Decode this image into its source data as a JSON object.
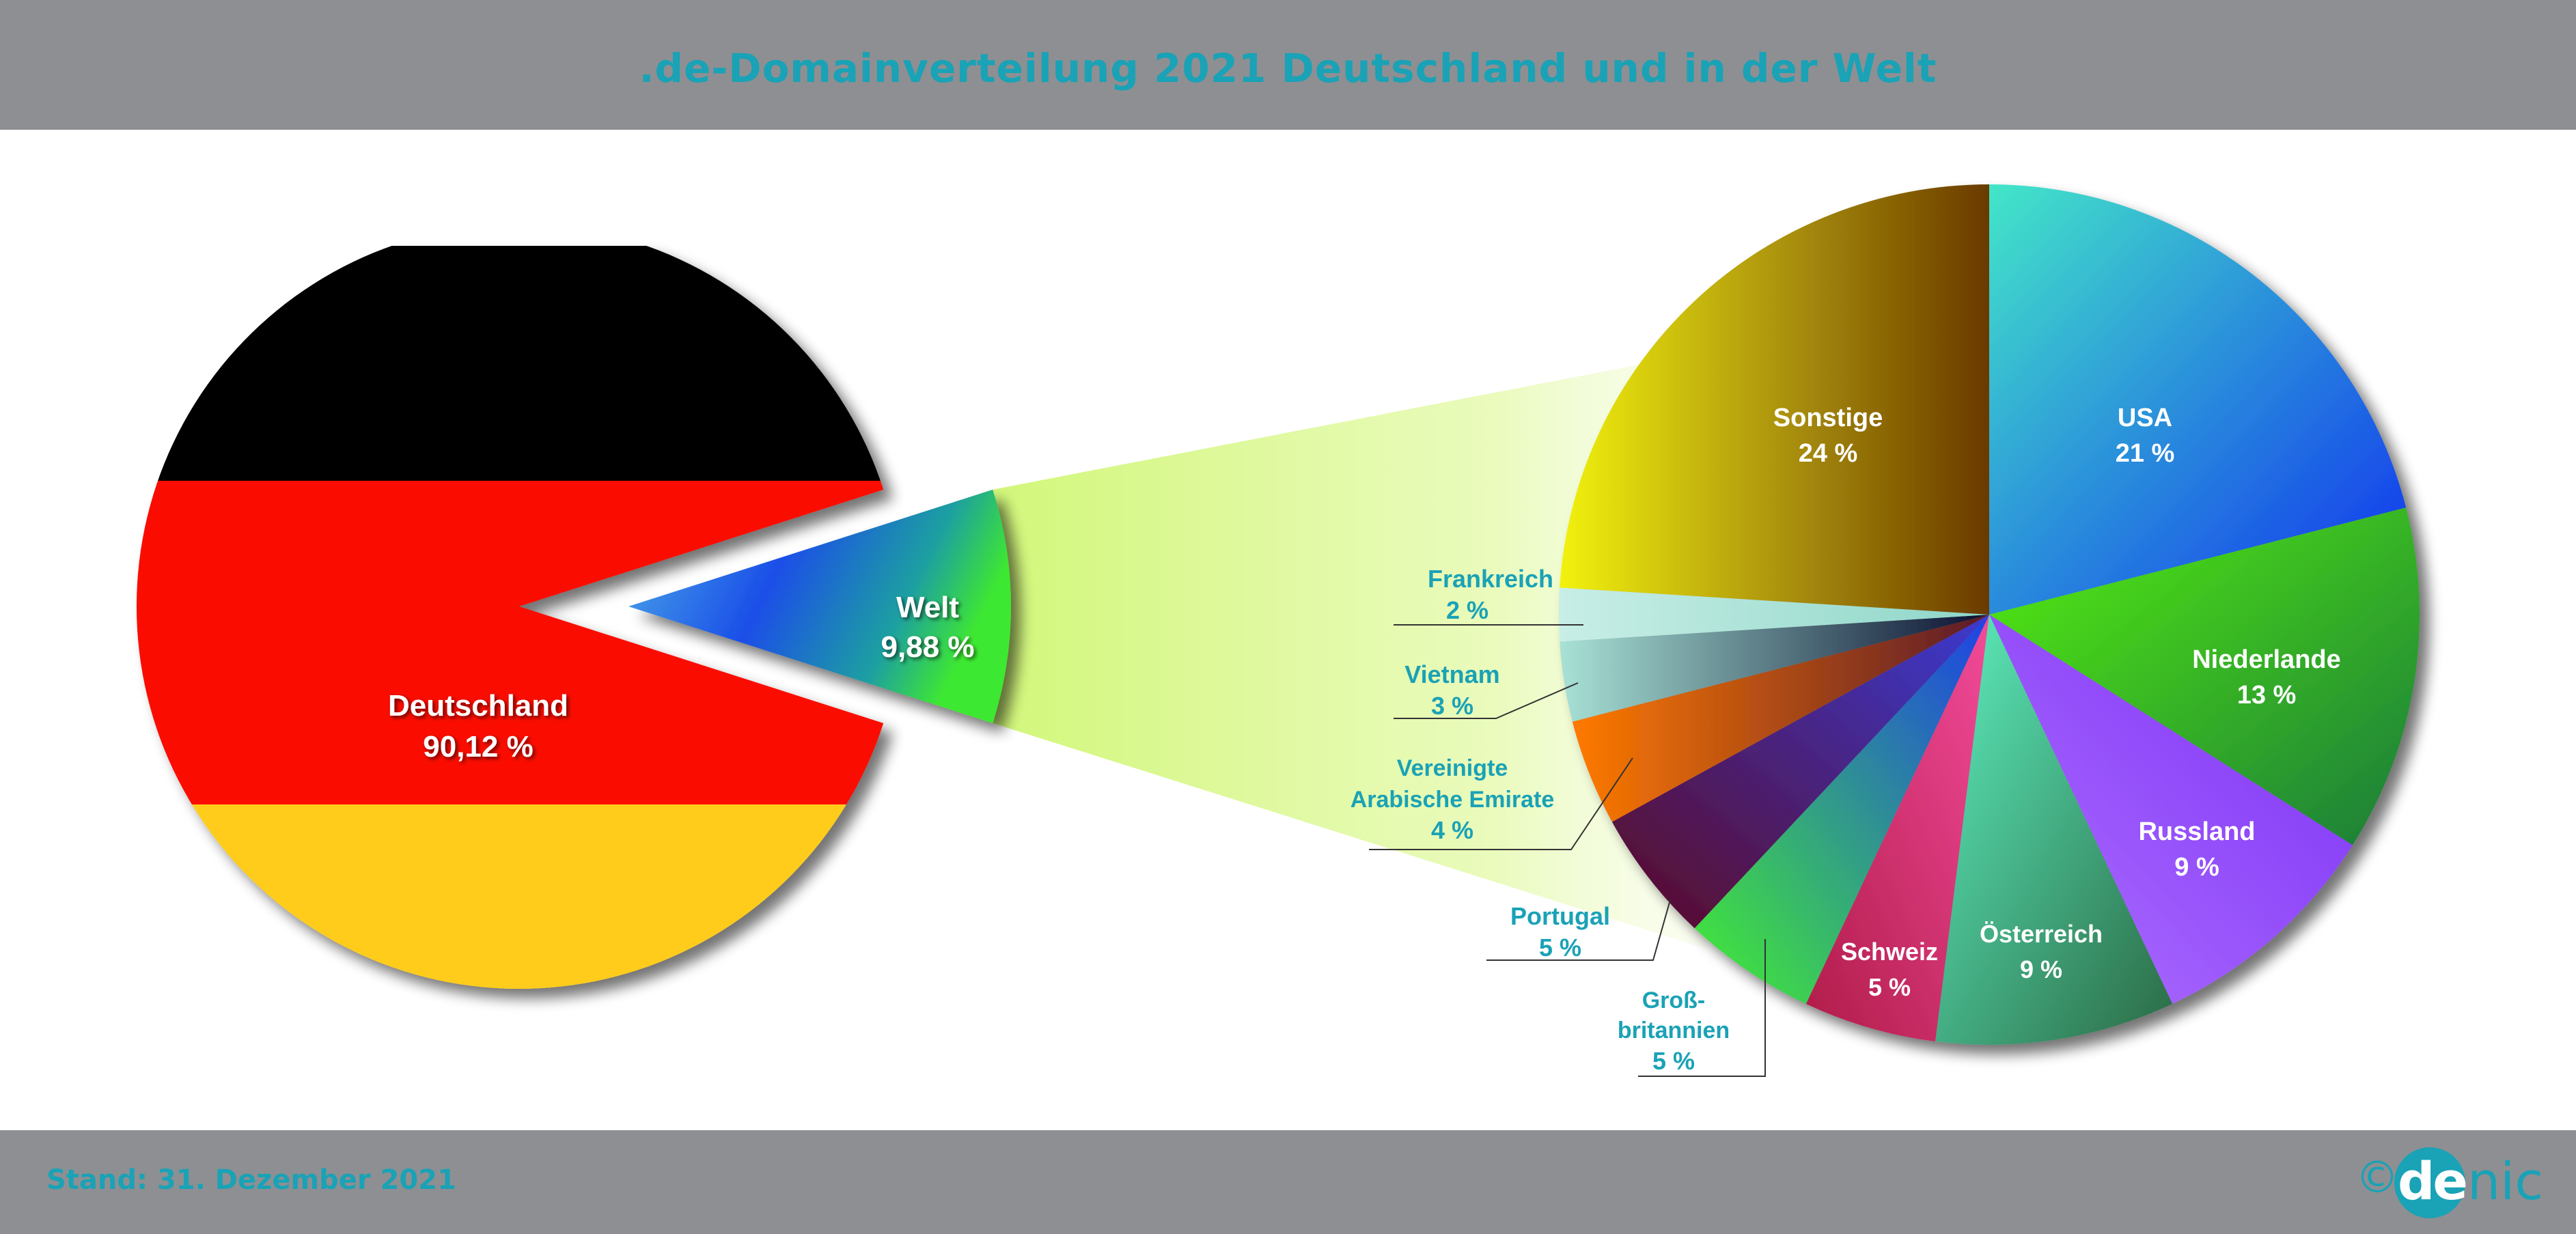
{
  "title": ".de-Domainverteilung 2021 Deutschland und in der Welt",
  "footer": {
    "stand": "Stand: 31. Dezember 2021",
    "copyright": "©",
    "logo_de": "de",
    "logo_nic": "nic"
  },
  "chart_data": [
    {
      "type": "pie",
      "series": [
        {
          "label": "Deutschland",
          "value": 90.12,
          "value_label": "90,12 %"
        },
        {
          "label": "Welt",
          "value": 9.88,
          "value_label": "9,88 %"
        }
      ]
    },
    {
      "type": "pie",
      "series": [
        {
          "label": "USA",
          "value": 21,
          "value_label": "21 %",
          "color": "#2f6fe0"
        },
        {
          "label": "Niederlande",
          "value": 13,
          "value_label": "13 %",
          "color": "#2e9a2e"
        },
        {
          "label": "Russland",
          "value": 9,
          "value_label": "9 %",
          "color": "#9a4cf5"
        },
        {
          "label": "Österreich",
          "value": 9,
          "value_label": "9 %",
          "color": "#4fb59a"
        },
        {
          "label": "Schweiz",
          "value": 5,
          "value_label": "5 %",
          "color": "#d62a6e"
        },
        {
          "label": "Groß-britannien",
          "value": 5,
          "value_label": "5 %",
          "color": "#3fc83a"
        },
        {
          "label": "Portugal",
          "value": 5,
          "value_label": "5 %",
          "color": "#4d1a55"
        },
        {
          "label": "Vereinigte Arabische Emirate",
          "value": 4,
          "value_label": "4 %",
          "color": "#e56a10"
        },
        {
          "label": "Vietnam",
          "value": 3,
          "value_label": "3 %",
          "color": "#3b6b80"
        },
        {
          "label": "Frankreich",
          "value": 2,
          "value_label": "2 %",
          "color": "#bfe8e0"
        },
        {
          "label": "Sonstige",
          "value": 24,
          "value_label": "24 %",
          "color": "#a07a14"
        }
      ]
    }
  ]
}
